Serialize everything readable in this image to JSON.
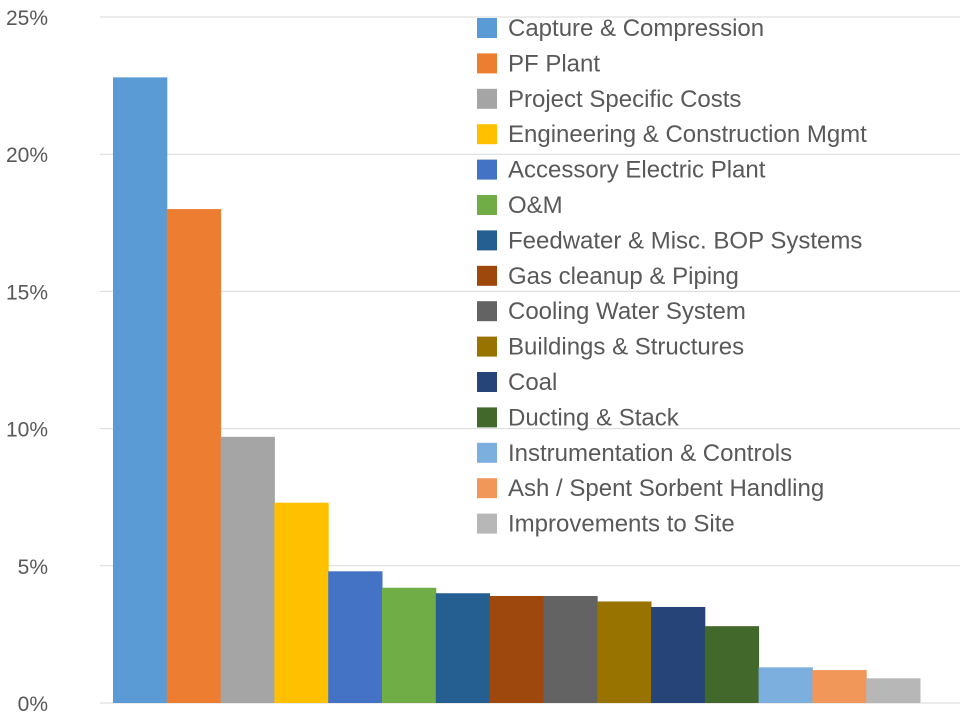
{
  "chart_data": {
    "type": "bar",
    "title": "",
    "xlabel": "",
    "ylabel": "",
    "ylim": [
      0,
      25
    ],
    "y_ticks": [
      "0%",
      "5%",
      "10%",
      "15%",
      "20%",
      "25%"
    ],
    "grid": true,
    "legend_position": "top-right",
    "categories": [
      "Capture & Compression",
      "PF Plant",
      "Project Specific Costs",
      "Engineering & Construction Mgmt",
      "Accessory Electric Plant",
      "O&M",
      "Feedwater & Misc. BOP Systems",
      "Gas cleanup & Piping",
      "Cooling Water System",
      "Buildings & Structures",
      "Coal",
      "Ducting & Stack",
      "Instrumentation & Controls",
      "Ash / Spent Sorbent Handling",
      "Improvements to Site"
    ],
    "values": [
      22.8,
      18.0,
      9.7,
      7.3,
      4.8,
      4.2,
      4.0,
      3.9,
      3.9,
      3.7,
      3.5,
      2.8,
      1.3,
      1.2,
      0.9
    ],
    "colors": [
      "#5B9BD5",
      "#ED7D31",
      "#A5A5A5",
      "#FFC000",
      "#4472C4",
      "#70AD47",
      "#255E91",
      "#9E480E",
      "#636363",
      "#997300",
      "#264478",
      "#43682B",
      "#7CAFDD",
      "#F1975A",
      "#B7B7B7"
    ]
  }
}
